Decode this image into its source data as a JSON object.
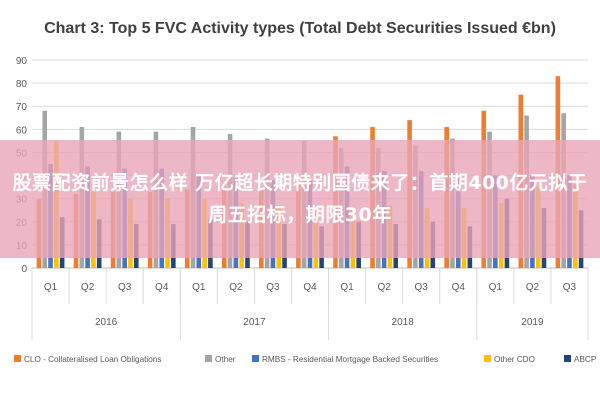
{
  "chart_data": {
    "type": "bar",
    "title": "Chart 3: Top 5 FVC Activity types (Total Debt Securities Issued €bn)",
    "categories": [
      "Q1",
      "Q2",
      "Q3",
      "Q4",
      "Q1",
      "Q2",
      "Q3",
      "Q4",
      "Q1",
      "Q2",
      "Q3",
      "Q4",
      "Q1",
      "Q2",
      "Q3"
    ],
    "year_groups": [
      {
        "label": "2016",
        "count": 4
      },
      {
        "label": "2017",
        "count": 4
      },
      {
        "label": "2018",
        "count": 4
      },
      {
        "label": "2019",
        "count": 3
      }
    ],
    "ylim": [
      0,
      90
    ],
    "yticks": [
      "0",
      "10",
      "20",
      "30",
      "40",
      "50",
      "60",
      "70",
      "80",
      "90"
    ],
    "grid": true,
    "legend_position": "bottom",
    "series": [
      {
        "name": "CLO - Collateralised Loan Obligations",
        "color": "#ED7D31",
        "values": [
          30,
          32,
          33,
          33,
          34,
          35,
          34,
          36,
          57,
          61,
          64,
          61,
          68,
          75,
          83
        ]
      },
      {
        "name": "Other",
        "color": "#A5A5A5",
        "values": [
          68,
          61,
          59,
          59,
          61,
          58,
          56,
          55,
          52,
          52,
          53,
          56,
          59,
          66,
          67
        ]
      },
      {
        "name": "RMBS - Residential Mortgage Backed Securities",
        "color": "#4472C4",
        "values": [
          45,
          44,
          43,
          43,
          40,
          39,
          38,
          38,
          44,
          42,
          42,
          40,
          40,
          40,
          40
        ]
      },
      {
        "name": "Other CDO",
        "color": "#FFC000",
        "values": [
          55,
          33,
          30,
          30,
          30,
          28,
          27,
          26,
          26,
          27,
          26,
          26,
          28,
          35,
          36
        ]
      },
      {
        "name": "ABCP",
        "color": "#264478",
        "values": [
          22,
          21,
          19,
          19,
          21,
          20,
          19,
          18,
          20,
          19,
          20,
          18,
          30,
          26,
          25
        ]
      }
    ]
  },
  "overlay": {
    "text": "股票配资前景怎么样 万亿超长期特别国债来了：首期400亿元拟于周五招标，期限30年"
  }
}
